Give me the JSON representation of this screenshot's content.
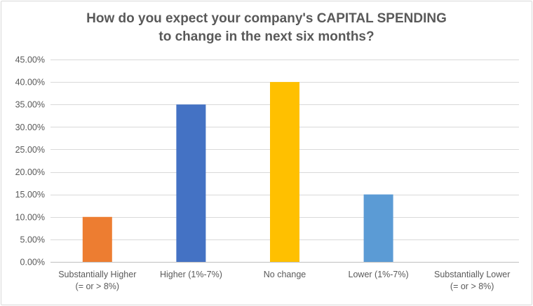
{
  "chart_data": {
    "type": "bar",
    "title": "How do you expect your company's CAPITAL SPENDING to change in the next six months?",
    "title_lines": [
      "How do you expect your company's CAPITAL SPENDING",
      "to change in the next six months?"
    ],
    "categories": [
      "Substantially Higher (= or > 8%)",
      "Higher (1%-7%)",
      "No change",
      "Lower (1%-7%)",
      "Substantially Lower (= or > 8%)"
    ],
    "category_label_lines": [
      [
        "Substantially Higher",
        "(= or > 8%)"
      ],
      [
        "Higher (1%-7%)"
      ],
      [
        "No change"
      ],
      [
        "Lower (1%-7%)"
      ],
      [
        "Substantially Lower",
        "(= or > 8%)"
      ]
    ],
    "values": [
      10,
      35,
      40,
      15,
      0
    ],
    "value_unit": "%",
    "bar_colors": [
      "#ed7d31",
      "#4472c4",
      "#ffc000",
      "#5b9bd5",
      "#a5a5a5"
    ],
    "ylim": [
      0,
      45
    ],
    "ytick_step": 5,
    "ytick_labels": [
      "0.00%",
      "5.00%",
      "10.00%",
      "15.00%",
      "20.00%",
      "25.00%",
      "30.00%",
      "35.00%",
      "40.00%",
      "45.00%"
    ],
    "xlabel": "",
    "ylabel": "",
    "grid": true,
    "legend": "none"
  }
}
